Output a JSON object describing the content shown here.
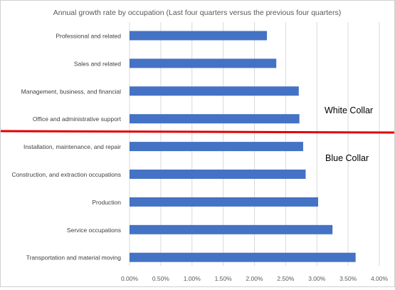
{
  "chart_data": {
    "type": "bar",
    "orientation": "horizontal",
    "title": "Annual growth rate by occupation (Last four quarters versus the previous four quarters)",
    "categories": [
      "Professional and related",
      "Sales and related",
      "Management, business, and financial",
      "Office and administrative support",
      "Installation, maintenance, and repair",
      "Construction, and extraction occupations",
      "Production",
      "Service occupations",
      "Transportation and material moving"
    ],
    "values": [
      2.2,
      2.35,
      2.71,
      2.72,
      2.78,
      2.82,
      3.02,
      3.25,
      3.62
    ],
    "xlim": [
      0,
      4.0
    ],
    "x_ticks": [
      "0.00%",
      "0.50%",
      "1.00%",
      "1.50%",
      "2.00%",
      "2.50%",
      "3.00%",
      "3.50%",
      "4.00%"
    ],
    "grid": "vertical",
    "legend": "none",
    "bar_color": "#4472C4",
    "annotations": [
      {
        "text": "White Collar"
      },
      {
        "text": "Blue Collar"
      }
    ],
    "divider_color": "#E00000"
  }
}
